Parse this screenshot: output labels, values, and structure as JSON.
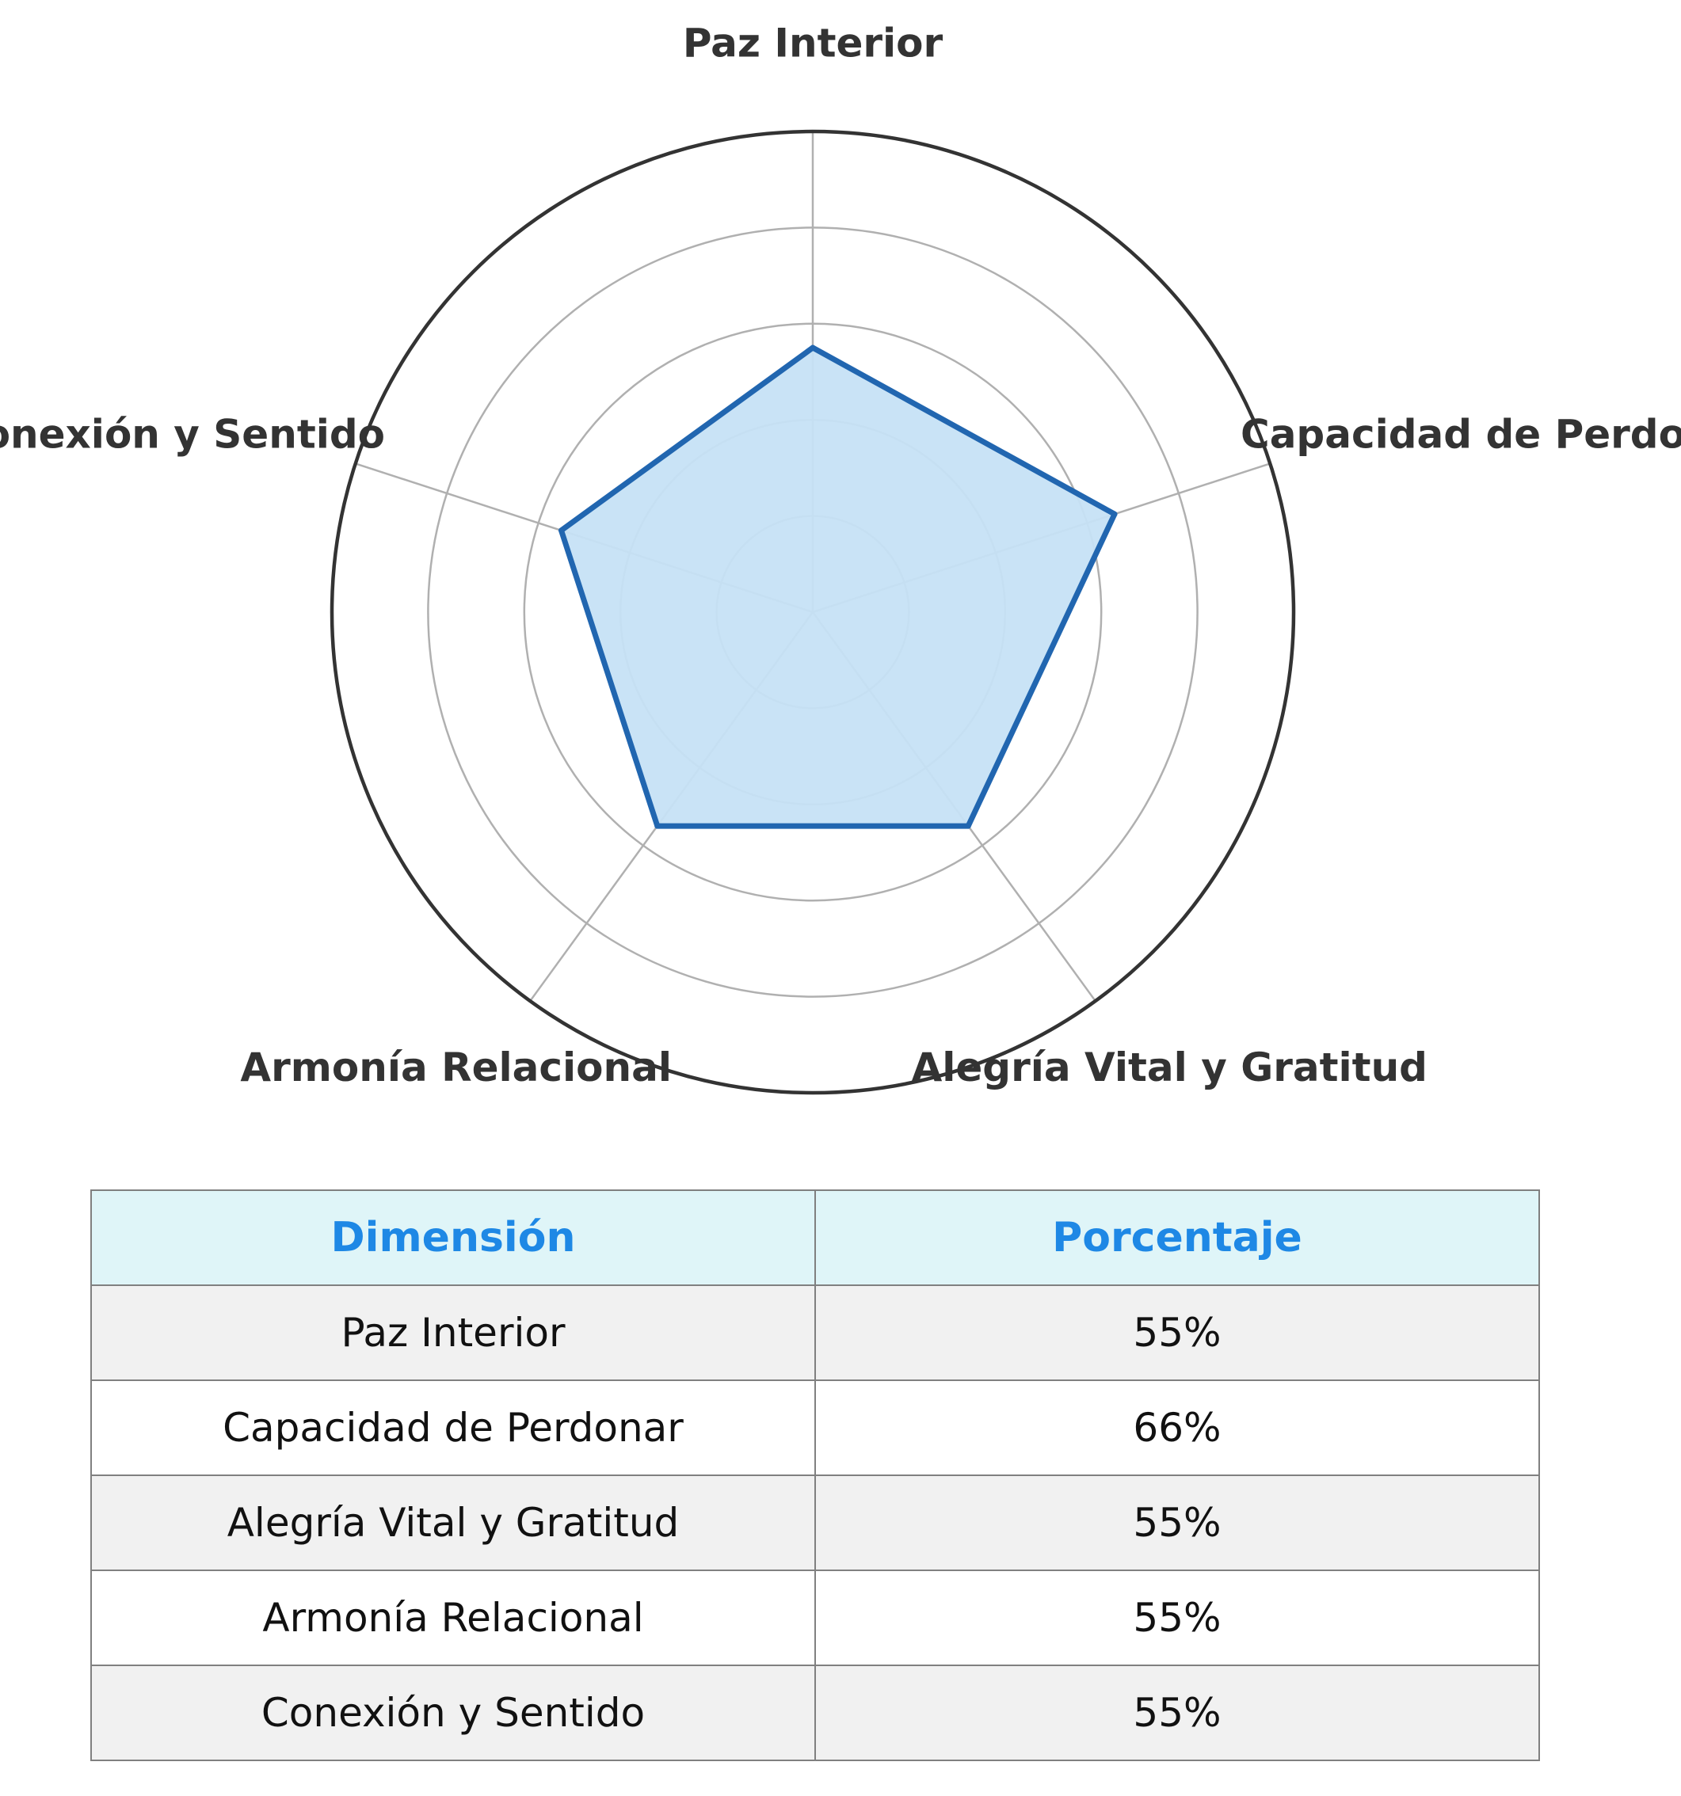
{
  "chart_data": {
    "type": "radar",
    "axes": [
      "Paz Interior",
      "Capacidad de Perdonar",
      "Alegría Vital y Gratitud",
      "Armonía Relacional",
      "Conexión y Sentido"
    ],
    "values": [
      55,
      66,
      55,
      55,
      55
    ],
    "range": [
      0,
      100
    ],
    "grid_rings": 5,
    "colors": {
      "line": "#2166b0",
      "fill": "#c6e2f5",
      "grid": "#b0b0b0",
      "outer_ring": "#333333"
    }
  },
  "table": {
    "headers": [
      "Dimensión",
      "Porcentaje"
    ],
    "rows": [
      [
        "Paz Interior",
        "55%"
      ],
      [
        "Capacidad de Perdonar",
        "66%"
      ],
      [
        "Alegría Vital y Gratitud",
        "55%"
      ],
      [
        "Armonía Relacional",
        "55%"
      ],
      [
        "Conexión y Sentido",
        "55%"
      ]
    ],
    "colors": {
      "header_bg": "#dff5f8",
      "header_text": "#1e88e5",
      "stripe": "#f1f1f1",
      "border": "#808080"
    }
  }
}
